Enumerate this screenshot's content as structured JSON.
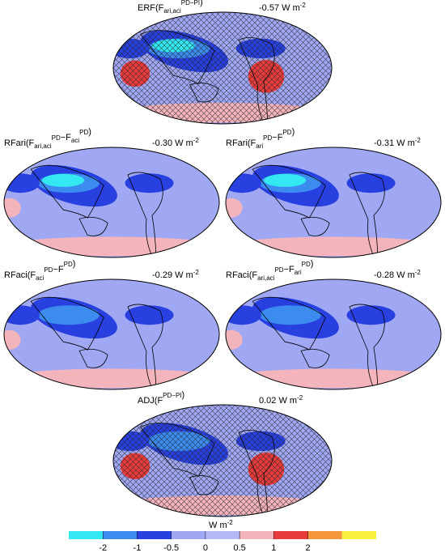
{
  "panels": [
    {
      "title": [
        {
          "text": "ERF(F",
          "sub": "ari,aci",
          "sup": "PD−PI"
        },
        {
          "text": ")"
        }
      ],
      "value": "-0.57",
      "unit": "W m",
      "unit_sup": "-2",
      "hatched": true
    },
    {
      "title": [
        {
          "text": "RFari(F",
          "sub": "ari,aci",
          "sup": "PD"
        },
        {
          "text": "−F",
          "sub": "aci",
          "sup": "PD"
        },
        {
          "text": ")"
        }
      ],
      "value": "-0.30",
      "unit": "W m",
      "unit_sup": "-2",
      "hatched": false
    },
    {
      "title": [
        {
          "text": "RFari(F",
          "sub": "ari",
          "sup": "PD"
        },
        {
          "text": "−F",
          "sup": "PD"
        },
        {
          "text": ")"
        }
      ],
      "value": "-0.31",
      "unit": "W m",
      "unit_sup": "-2",
      "hatched": false
    },
    {
      "title": [
        {
          "text": "RFaci(F",
          "sub": "aci",
          "sup": "PD"
        },
        {
          "text": "−F",
          "sup": "PD"
        },
        {
          "text": ")"
        }
      ],
      "value": "-0.29",
      "unit": "W m",
      "unit_sup": "-2",
      "hatched": false
    },
    {
      "title": [
        {
          "text": "RFaci(F",
          "sub": "ari,aci",
          "sup": "PD"
        },
        {
          "text": "−F",
          "sub": "ari",
          "sup": "PD"
        },
        {
          "text": ")"
        }
      ],
      "value": "-0.28",
      "unit": "W m",
      "unit_sup": "-2",
      "hatched": false
    },
    {
      "title": [
        {
          "text": "ADJ(F",
          "sup": "PD−PI"
        },
        {
          "text": ")"
        }
      ],
      "value": "0.02",
      "unit": "W m",
      "unit_sup": "-2",
      "hatched": true
    }
  ],
  "colorbar": {
    "unit": "W m",
    "unit_sup": "-2",
    "ticks": [
      -2,
      -1,
      -0.5,
      0,
      0.5,
      1,
      2
    ],
    "colors": [
      "#33e8f0",
      "#3c8cf0",
      "#2840e0",
      "#a0a8f4",
      "#b4b8f4",
      "#f4b4bc",
      "#e83c3c",
      "#f4963c",
      "#f8f03c"
    ]
  }
}
